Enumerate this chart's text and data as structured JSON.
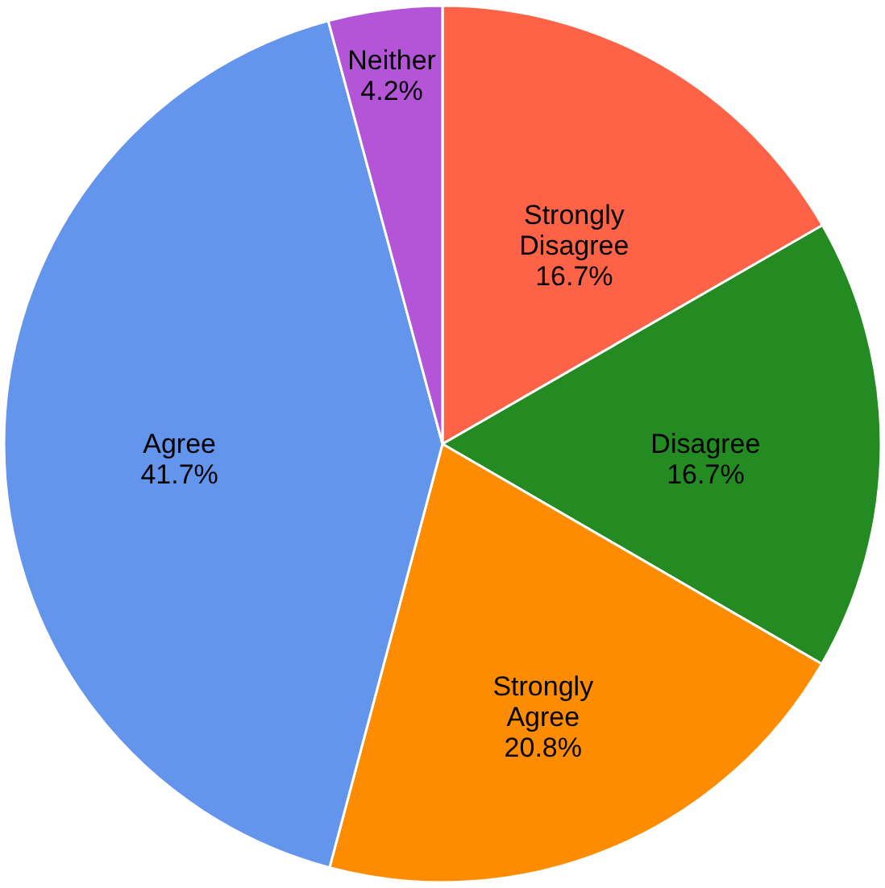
{
  "chart_data": {
    "type": "pie",
    "categories": [
      "Strongly Disagree",
      "Disagree",
      "Strongly Agree",
      "Agree",
      "Neither"
    ],
    "values": [
      16.7,
      16.7,
      20.8,
      41.7,
      4.2
    ],
    "colors": [
      "#fe6347",
      "#238b22",
      "#fe8c00",
      "#6495ed",
      "#b455d8"
    ],
    "value_labels": [
      "16.7%",
      "16.7%",
      "20.8%",
      "41.7%",
      "4.2%"
    ],
    "legend": false
  }
}
